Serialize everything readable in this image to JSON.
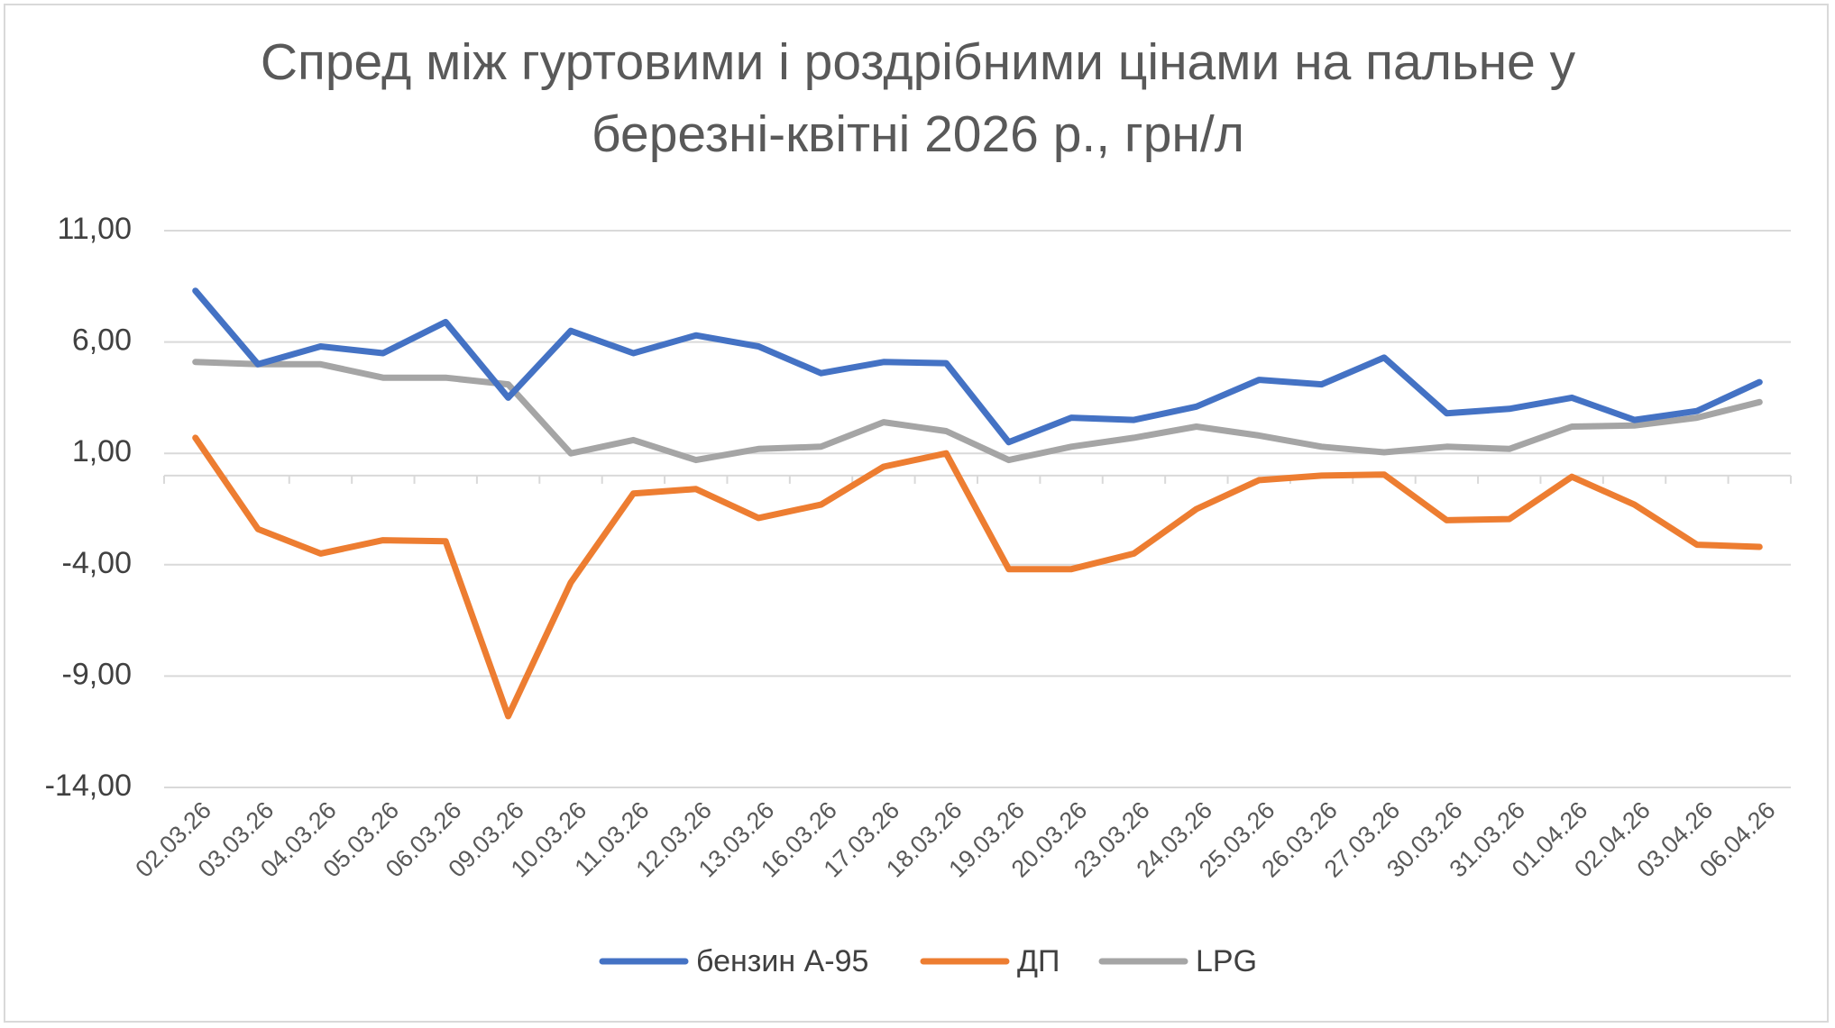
{
  "chart_data": {
    "type": "line",
    "title": "Спред між гуртовими і роздрібними цінами на пальне у березні-квітні 2026 р., грн/л",
    "title_lines": [
      "Спред між гуртовими і роздрібними цінами на пальне у",
      "березні-квітні 2026 р., грн/л"
    ],
    "xlabel": "",
    "ylabel": "",
    "ylim": [
      -14,
      11
    ],
    "yticks": [
      11,
      6,
      1,
      -4,
      -9,
      -14
    ],
    "ytick_labels": [
      "11,00",
      "6,00",
      "1,00",
      "-4,00",
      "-9,00",
      "-14,00"
    ],
    "grid": true,
    "legend_position": "bottom",
    "categories": [
      "02.03.26",
      "03.03.26",
      "04.03.26",
      "05.03.26",
      "06.03.26",
      "09.03.26",
      "10.03.26",
      "11.03.26",
      "12.03.26",
      "13.03.26",
      "16.03.26",
      "17.03.26",
      "18.03.26",
      "19.03.26",
      "20.03.26",
      "23.03.26",
      "24.03.26",
      "25.03.26",
      "26.03.26",
      "27.03.26",
      "30.03.26",
      "31.03.26",
      "01.04.26",
      "02.04.26",
      "03.04.26",
      "06.04.26"
    ],
    "series": [
      {
        "name": "бензин А-95",
        "color": "#4472c4",
        "values": [
          8.3,
          5.0,
          5.8,
          5.5,
          6.9,
          3.5,
          6.5,
          5.5,
          6.3,
          5.8,
          4.6,
          5.1,
          5.05,
          1.5,
          2.6,
          2.5,
          3.1,
          4.3,
          4.1,
          5.3,
          2.8,
          3.0,
          3.5,
          2.5,
          2.9,
          4.2
        ]
      },
      {
        "name": "ДП",
        "color": "#ed7d31",
        "values": [
          1.7,
          -2.4,
          -3.5,
          -2.9,
          -2.95,
          -10.8,
          -4.8,
          -0.8,
          -0.6,
          -1.9,
          -1.3,
          0.4,
          1.0,
          -4.2,
          -4.2,
          -3.5,
          -1.5,
          -0.2,
          0.0,
          0.05,
          -2.0,
          -1.95,
          -0.05,
          -1.3,
          -3.1,
          -3.2
        ]
      },
      {
        "name": "LPG",
        "color": "#a5a5a5",
        "values": [
          5.1,
          5.0,
          5.0,
          4.4,
          4.4,
          4.1,
          1.0,
          1.6,
          0.7,
          1.2,
          1.3,
          2.4,
          2.0,
          0.7,
          1.3,
          1.7,
          2.2,
          1.8,
          1.3,
          1.05,
          1.3,
          1.2,
          2.2,
          2.25,
          2.6,
          3.3
        ]
      }
    ]
  }
}
